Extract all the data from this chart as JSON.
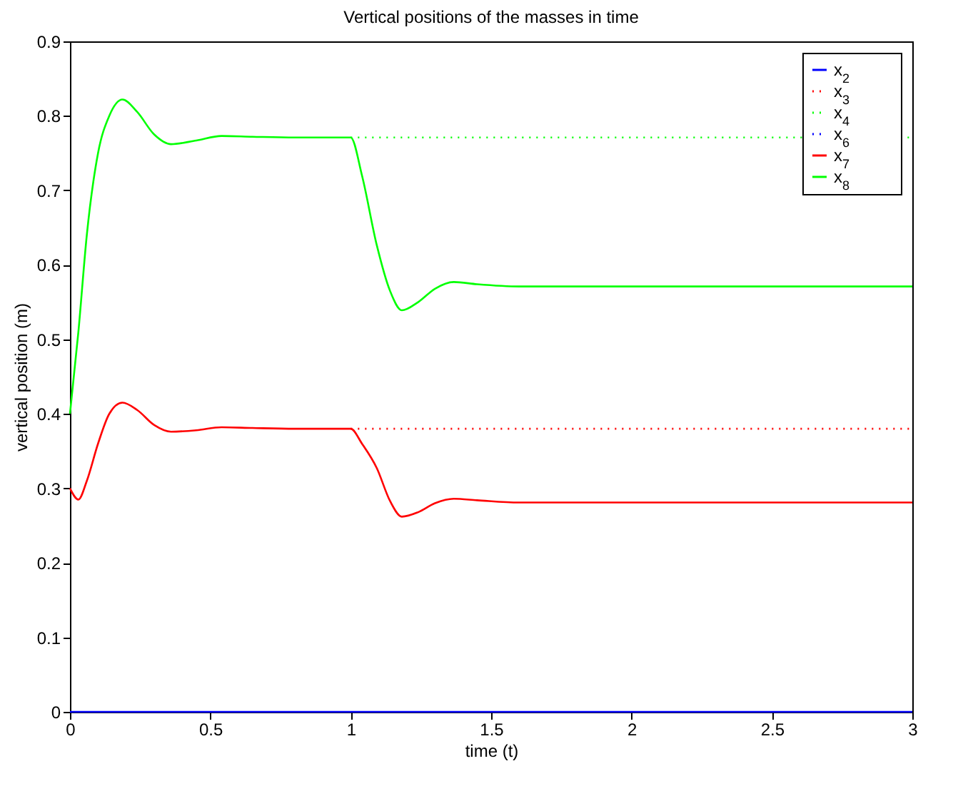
{
  "chart_data": {
    "type": "line",
    "title": "Vertical positions of the masses in time",
    "xlabel": "time (t)",
    "ylabel": "vertical position (m)",
    "x": [
      0,
      0.03,
      0.06,
      0.1,
      0.14,
      0.187,
      0.24,
      0.3,
      0.36,
      0.45,
      0.54,
      0.65,
      0.8,
      1.0,
      1.04,
      1.093,
      1.14,
      1.182,
      1.24,
      1.3,
      1.367,
      1.45,
      1.6,
      2.0,
      2.5,
      3.0
    ],
    "series": [
      {
        "name": "x$_{2}$",
        "color": "#0000ff",
        "line_style": "solid",
        "values": [
          0,
          0,
          0,
          0,
          0,
          0,
          0,
          0,
          0,
          0,
          0,
          0,
          0,
          0,
          0,
          0,
          0,
          0,
          0,
          0,
          0,
          0,
          0,
          0,
          0,
          0
        ]
      },
      {
        "name": "x$_{3}$",
        "color": "#ff0000",
        "line_style": "dotted",
        "values": [
          null,
          null,
          null,
          null,
          null,
          null,
          null,
          null,
          null,
          null,
          null,
          null,
          null,
          0.38,
          0.38,
          0.38,
          0.38,
          0.38,
          0.38,
          0.38,
          0.38,
          0.38,
          0.38,
          0.38,
          0.38,
          0.38
        ]
      },
      {
        "name": "x$_{4}$",
        "color": "#00ff00",
        "line_style": "dotted",
        "values": [
          null,
          null,
          null,
          null,
          null,
          null,
          null,
          null,
          null,
          null,
          null,
          null,
          null,
          0.771,
          0.771,
          0.771,
          0.771,
          0.771,
          0.771,
          0.771,
          0.771,
          0.771,
          0.771,
          0.771,
          0.771,
          0.771
        ]
      },
      {
        "name": "x$_{6}$",
        "color": "#0000ff",
        "line_style": "dotted",
        "values": [
          null,
          null,
          null,
          null,
          null,
          null,
          null,
          null,
          null,
          null,
          null,
          null,
          null,
          null,
          null,
          null,
          null,
          null,
          null,
          null,
          null,
          null,
          null,
          null,
          null,
          null
        ]
      },
      {
        "name": "x$_{7}$",
        "color": "#ff0000",
        "line_style": "solid",
        "values": [
          0.3,
          0.285,
          0.31,
          0.36,
          0.4,
          0.415,
          0.405,
          0.385,
          0.376,
          0.378,
          0.382,
          0.381,
          0.38,
          0.38,
          0.36,
          0.327,
          0.283,
          0.262,
          0.268,
          0.28,
          0.286,
          0.284,
          0.281,
          0.281,
          0.281,
          0.281
        ]
      },
      {
        "name": "x$_{8}$",
        "color": "#00ff00",
        "line_style": "solid",
        "values": [
          0.4,
          0.51,
          0.64,
          0.75,
          0.8,
          0.822,
          0.805,
          0.775,
          0.762,
          0.767,
          0.773,
          0.772,
          0.771,
          0.771,
          0.72,
          0.626,
          0.565,
          0.539,
          0.55,
          0.568,
          0.577,
          0.574,
          0.571,
          0.571,
          0.571,
          0.571
        ]
      }
    ],
    "xlim": [
      0,
      3
    ],
    "xticks": [
      0,
      0.5,
      1,
      1.5,
      2,
      2.5,
      3
    ],
    "ylim": [
      0,
      0.9
    ],
    "yticks": [
      0,
      0.1,
      0.2,
      0.3,
      0.4,
      0.5,
      0.6,
      0.7,
      0.8,
      0.9
    ],
    "grid": false,
    "legend": "top right"
  }
}
